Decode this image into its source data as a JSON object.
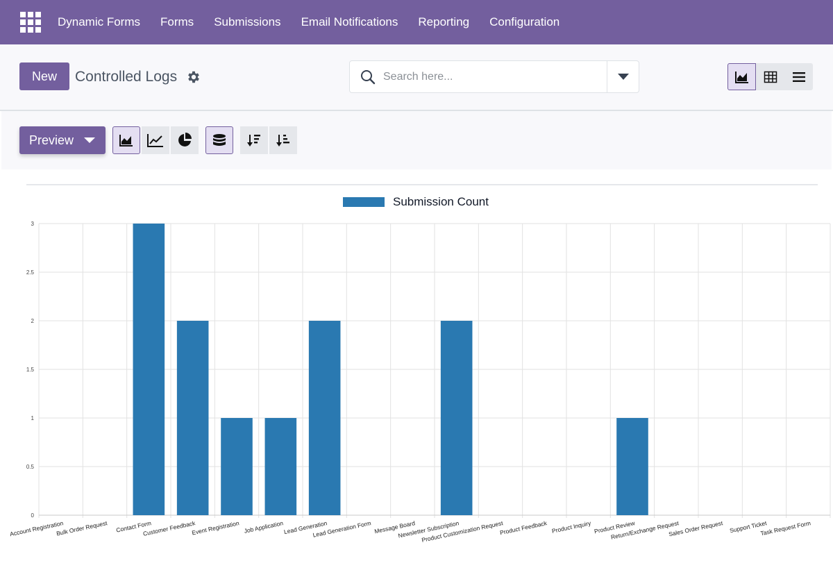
{
  "nav": {
    "items": [
      "Dynamic Forms",
      "Forms",
      "Submissions",
      "Email Notifications",
      "Reporting",
      "Configuration"
    ]
  },
  "controlpanel": {
    "new_label": "New",
    "title": "Controlled Logs",
    "search_placeholder": "Search here..."
  },
  "toolbar": {
    "preview_label": "Preview"
  },
  "colors": {
    "brand": "#735f9e",
    "bar": "#2a79b1"
  },
  "chart_data": {
    "type": "bar",
    "categories": [
      "Account Registration",
      "Bulk Order Request",
      "Contact Form",
      "Customer Feedback",
      "Event Registration",
      "Job Application",
      "Lead Generation",
      "Lead Generation Form",
      "Message Board",
      "Newsletter Subscription",
      "Product Customization Request",
      "Product Feedback",
      "Product Inquiry",
      "Product Review",
      "Return/Exchange Request",
      "Sales Order Request",
      "Support Ticket",
      "Task Request Form"
    ],
    "series": [
      {
        "name": "Submission Count",
        "values": [
          0,
          0,
          3,
          2,
          1,
          1,
          2,
          0,
          0,
          2,
          0,
          0,
          0,
          1,
          0,
          0,
          0,
          0
        ]
      }
    ],
    "yticks": [
      "0",
      "0.5",
      "1",
      "1.5",
      "2",
      "2.5",
      "3"
    ],
    "ylim": [
      0,
      3
    ],
    "grid": true,
    "legend_position": "top-center"
  }
}
